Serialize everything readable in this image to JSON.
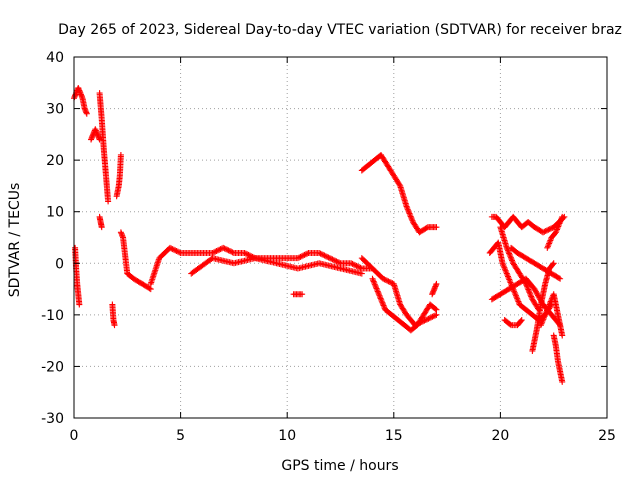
{
  "chart_data": {
    "type": "scatter",
    "title": "Day 265 of 2023, Sidereal Day-to-day VTEC variation (SDTVAR) for receiver braz",
    "xlabel": "GPS time / hours",
    "ylabel": "SDTVAR / TECUs",
    "xlim": [
      0,
      25
    ],
    "ylim": [
      -30,
      40
    ],
    "xticks": [
      0,
      5,
      10,
      15,
      20,
      25
    ],
    "yticks": [
      -30,
      -20,
      -10,
      0,
      10,
      20,
      30,
      40
    ],
    "grid": true,
    "marker": "plus",
    "color": "#ff0000",
    "series": [
      {
        "name": "t0",
        "x": [
          0.0,
          0.1,
          0.2,
          0.3,
          0.4,
          0.5,
          0.6
        ],
        "y": [
          32,
          33,
          34,
          33,
          32,
          30,
          29
        ]
      },
      {
        "name": "t1",
        "x": [
          0.05,
          0.1,
          0.15,
          0.2,
          0.25
        ],
        "y": [
          3,
          -1,
          -4,
          -6,
          -8
        ]
      },
      {
        "name": "t2",
        "x": [
          0.8,
          0.9,
          1.0,
          1.1,
          1.2
        ],
        "y": [
          24,
          25,
          26,
          25,
          24
        ]
      },
      {
        "name": "t3",
        "x": [
          1.2,
          1.3,
          1.4,
          1.5,
          1.6
        ],
        "y": [
          33,
          28,
          22,
          17,
          12
        ]
      },
      {
        "name": "t4",
        "x": [
          1.2,
          1.25,
          1.3
        ],
        "y": [
          9,
          8,
          7
        ]
      },
      {
        "name": "t5",
        "x": [
          1.8,
          1.85,
          1.9
        ],
        "y": [
          -8,
          -11,
          -12
        ]
      },
      {
        "name": "t6",
        "x": [
          2.0,
          2.1,
          2.15,
          2.2
        ],
        "y": [
          13,
          15,
          17,
          21
        ]
      },
      {
        "name": "t7",
        "x": [
          2.2,
          2.3,
          2.5,
          2.8,
          3.2,
          3.6
        ],
        "y": [
          6,
          5,
          -2,
          -3,
          -4,
          -5
        ]
      },
      {
        "name": "t8",
        "x": [
          3.6,
          4.0,
          4.5,
          5.0,
          5.5,
          6.0,
          6.5,
          7.0,
          7.5,
          8.0,
          8.5,
          9.0,
          9.5,
          10.0,
          10.5,
          11.0,
          11.5,
          12.0,
          12.5,
          13.0,
          13.5,
          14.0
        ],
        "y": [
          -4,
          1,
          3,
          2,
          2,
          2,
          2,
          3,
          2,
          2,
          1,
          1,
          1,
          1,
          1,
          2,
          2,
          1,
          0,
          0,
          -1,
          -1
        ]
      },
      {
        "name": "t9",
        "x": [
          5.5,
          6.5,
          7.5,
          8.5,
          9.5,
          10.5,
          11.5,
          12.5,
          13.5
        ],
        "y": [
          -2,
          1,
          0,
          1,
          0,
          -1,
          0,
          -1,
          -2
        ]
      },
      {
        "name": "t10",
        "x": [
          10.3,
          10.5,
          10.7
        ],
        "y": [
          -6,
          -6,
          -6
        ]
      },
      {
        "name": "t11",
        "x": [
          13.5,
          13.8,
          14.1,
          14.4,
          14.7,
          15.0,
          15.3,
          15.6,
          15.9,
          16.2,
          16.6,
          17.0
        ],
        "y": [
          18,
          19,
          20,
          21,
          19,
          17,
          15,
          11,
          8,
          6,
          7,
          7
        ]
      },
      {
        "name": "t12",
        "x": [
          14.0,
          14.3,
          14.6,
          14.9,
          15.2,
          15.5,
          15.8,
          16.1,
          16.4,
          16.7,
          17.0
        ],
        "y": [
          -3,
          -6,
          -9,
          -10,
          -11,
          -12,
          -13,
          -12,
          -10,
          -8,
          -9
        ]
      },
      {
        "name": "t13",
        "x": [
          13.5,
          14.0,
          14.5,
          15.0,
          15.3,
          15.6,
          16.0,
          16.5,
          17.0
        ],
        "y": [
          1,
          -1,
          -3,
          -4,
          -8,
          -10,
          -12,
          -11,
          -10
        ]
      },
      {
        "name": "t14",
        "x": [
          16.8,
          16.9,
          17.0
        ],
        "y": [
          -6,
          -5,
          -4
        ]
      },
      {
        "name": "t15",
        "x": [
          19.6,
          19.8,
          20.0,
          20.2,
          20.4,
          20.6,
          20.8,
          21.0,
          21.3,
          21.6,
          22.0,
          22.5,
          23.0
        ],
        "y": [
          9,
          9,
          8,
          7,
          8,
          9,
          8,
          7,
          8,
          7,
          6,
          7,
          9
        ]
      },
      {
        "name": "t16",
        "x": [
          19.5,
          19.7,
          19.9,
          20.1,
          20.3,
          20.5,
          20.7,
          20.9,
          21.2,
          21.5,
          21.8,
          22.1,
          22.4
        ],
        "y": [
          2,
          3,
          4,
          0,
          -2,
          -4,
          -6,
          -8,
          -9,
          -10,
          -11,
          -10,
          -8
        ]
      },
      {
        "name": "t17",
        "x": [
          19.6,
          20.0,
          20.4,
          20.8,
          21.2,
          21.6,
          22.0,
          22.4,
          22.8
        ],
        "y": [
          -7,
          -6,
          -5,
          -4,
          -3,
          -5,
          -8,
          -10,
          -12
        ]
      },
      {
        "name": "t18",
        "x": [
          20.0,
          20.3,
          20.6,
          20.9,
          21.2,
          21.5,
          21.8
        ],
        "y": [
          7,
          3,
          0,
          -2,
          -4,
          -7,
          -9
        ]
      },
      {
        "name": "t19",
        "x": [
          20.2,
          20.5,
          20.8,
          21.0
        ],
        "y": [
          -11,
          -12,
          -12,
          -11
        ]
      },
      {
        "name": "t20",
        "x": [
          21.5,
          21.7,
          21.9,
          22.1,
          22.3,
          22.5
        ],
        "y": [
          -17,
          -13,
          -8,
          -4,
          -1,
          0
        ]
      },
      {
        "name": "t21",
        "x": [
          21.9,
          22.1,
          22.3,
          22.5,
          22.7,
          22.9
        ],
        "y": [
          -12,
          -10,
          -8,
          -6,
          -10,
          -14
        ]
      },
      {
        "name": "t22",
        "x": [
          22.2,
          22.4,
          22.6,
          22.8,
          22.9
        ],
        "y": [
          3,
          5,
          6,
          8,
          9
        ]
      },
      {
        "name": "t23",
        "x": [
          22.5,
          22.6,
          22.7,
          22.8,
          22.9
        ],
        "y": [
          -14,
          -16,
          -19,
          -21,
          -23
        ]
      },
      {
        "name": "t24",
        "x": [
          20.5,
          20.8,
          21.2,
          21.6,
          22.0,
          22.4,
          22.8
        ],
        "y": [
          3,
          2,
          1,
          0,
          -1,
          -2,
          -3
        ]
      }
    ]
  }
}
